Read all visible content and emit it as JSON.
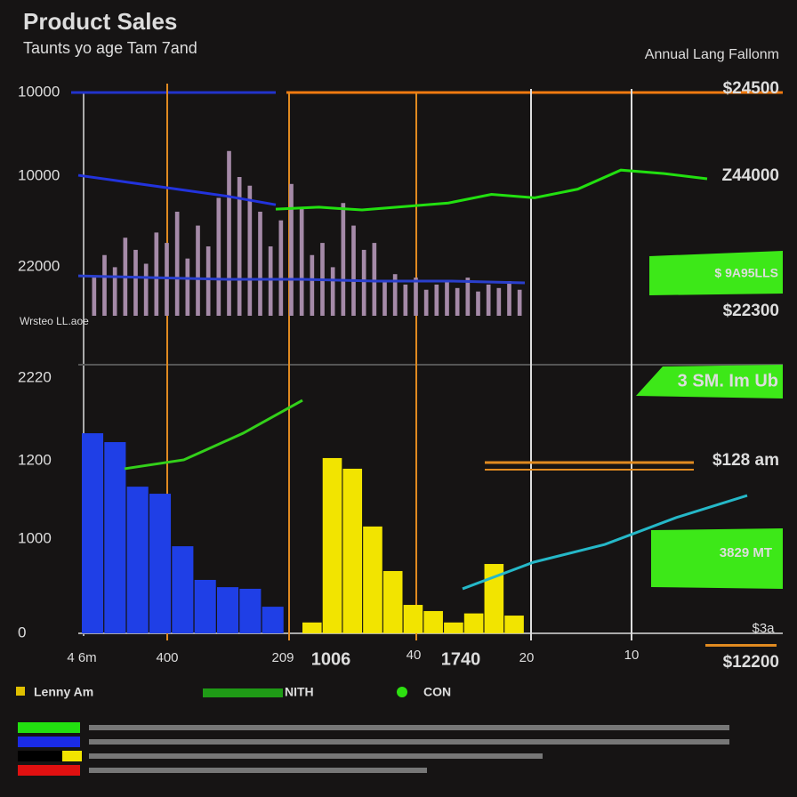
{
  "chart_data": {
    "type": "bar",
    "title": "Product Sales",
    "subtitle": "Taunts yo age Tam 7and",
    "note": "Annual Lang Fallonm",
    "left_labels": [
      "10000",
      "10000",
      "22000",
      "Wrsteo LL.aoe",
      "2220",
      "1200",
      "1000",
      "0"
    ],
    "right_labels": [
      "$24500",
      "Z44000",
      "$22300",
      "$128 am",
      "$12200"
    ],
    "x_labels": [
      "4 6m",
      "400",
      "209",
      "1006",
      "40",
      "1740",
      "20",
      "10",
      "$3a"
    ],
    "callouts": [
      "$ 9A95LLS",
      "3 SM. Im Ub",
      "3829 MT"
    ],
    "legend": [
      "Lenny Am",
      "NITH",
      "CON"
    ],
    "upper_ylim": [
      0,
      100
    ],
    "upper_bars": {
      "color": "#a58aa8",
      "values": [
        22,
        35,
        28,
        45,
        38,
        30,
        48,
        42,
        60,
        33,
        52,
        40,
        68,
        95,
        80,
        75,
        60,
        40,
        55,
        76,
        62,
        35,
        42,
        28,
        65,
        52,
        38,
        42,
        20,
        24,
        18,
        22,
        15,
        18,
        20,
        16,
        22,
        14,
        18,
        16,
        20,
        15
      ]
    },
    "lower_ylim": [
      0,
      1400
    ],
    "lower_bars": [
      {
        "color": "#1f3fe6",
        "values": [
          1105,
          1056,
          810,
          771,
          481,
          295,
          255,
          246,
          147
        ]
      },
      {
        "color": "#f2e400",
        "values": [
          60,
          968,
          909,
          590,
          344,
          157,
          123,
          60,
          110,
          383,
          98
        ]
      }
    ],
    "upper_lines": [
      {
        "color": "#2233dd",
        "values": [
          81,
          77,
          73,
          69,
          64
        ]
      },
      {
        "color": "#22e010",
        "values": [
          61.5,
          62.6,
          61,
          63,
          65,
          70,
          68,
          73,
          84,
          82,
          79
        ]
      },
      {
        "color": "#2a3fcc",
        "values": [
          23,
          22,
          21,
          21,
          20,
          20,
          19
        ]
      }
    ],
    "lower_lines": [
      {
        "color": "#33d01a",
        "values": [
          909,
          958,
          1105,
          1287
        ]
      },
      {
        "color": "#25b8c8",
        "values": [
          246,
          393,
          491,
          639,
          761
        ]
      }
    ]
  }
}
